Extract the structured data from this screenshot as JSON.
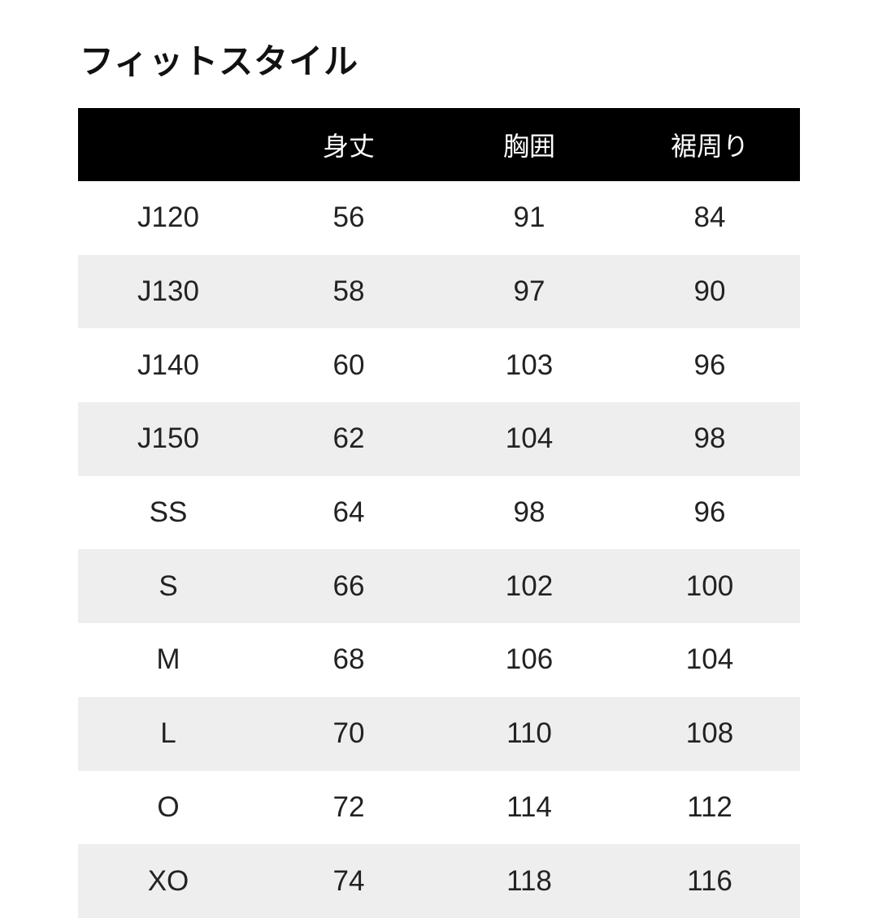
{
  "title": "フィットスタイル",
  "headers": [
    "",
    "身丈",
    "胸囲",
    "裾周り"
  ],
  "rows": [
    [
      "J120",
      "56",
      "91",
      "84"
    ],
    [
      "J130",
      "58",
      "97",
      "90"
    ],
    [
      "J140",
      "60",
      "103",
      "96"
    ],
    [
      "J150",
      "62",
      "104",
      "98"
    ],
    [
      "SS",
      "64",
      "98",
      "96"
    ],
    [
      "S",
      "66",
      "102",
      "100"
    ],
    [
      "M",
      "68",
      "106",
      "104"
    ],
    [
      "L",
      "70",
      "110",
      "108"
    ],
    [
      "O",
      "72",
      "114",
      "112"
    ],
    [
      "XO",
      "74",
      "118",
      "116"
    ]
  ]
}
